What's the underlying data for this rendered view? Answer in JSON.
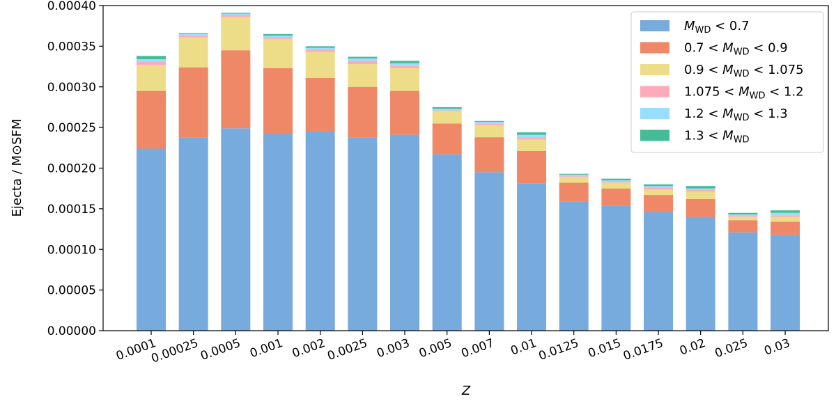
{
  "chart_data": {
    "type": "bar",
    "stacked": true,
    "title": "",
    "xlabel": "Z",
    "ylabel": "Ejecta / M⊙SFM",
    "ylim": [
      0,
      0.0004
    ],
    "yticks": [
      "0.00000",
      "0.00005",
      "0.00010",
      "0.00015",
      "0.00020",
      "0.00025",
      "0.00030",
      "0.00035",
      "0.00040"
    ],
    "categories": [
      "0.0001",
      "0.00025",
      "0.0005",
      "0.001",
      "0.002",
      "0.0025",
      "0.003",
      "0.005",
      "0.007",
      "0.01",
      "0.0125",
      "0.015",
      "0.0175",
      "0.02",
      "0.025",
      "0.03"
    ],
    "series": [
      {
        "name": "M_WD < 0.7",
        "color": "#77aadd",
        "values": [
          0.000224,
          0.000238,
          0.000249,
          0.000242,
          0.000245,
          0.000238,
          0.000241,
          0.000217,
          0.000195,
          0.000181,
          0.000159,
          0.000154,
          0.000146,
          0.00014,
          0.000121,
          0.000118
        ]
      },
      {
        "name": "0.7 < M_WD < 0.9",
        "color": "#ee8866",
        "values": [
          7.1e-05,
          8.6e-05,
          9.6e-05,
          8.1e-05,
          6.6e-05,
          6.2e-05,
          5.4e-05,
          3.8e-05,
          4.3e-05,
          4e-05,
          2.3e-05,
          2.1e-05,
          2.1e-05,
          2.2e-05,
          1.5e-05,
          1.6e-05
        ]
      },
      {
        "name": "0.9 < M_WD < 1.075",
        "color": "#eedd88",
        "values": [
          3.2e-05,
          3.7e-05,
          4.1e-05,
          3.6e-05,
          3.2e-05,
          2.8e-05,
          2.8e-05,
          1.5e-05,
          1.5e-05,
          1.4e-05,
          7e-06,
          7e-06,
          7e-06,
          9e-06,
          4e-06,
          6e-06
        ]
      },
      {
        "name": "1.075 < M_WD < 1.2",
        "color": "#ffaabb",
        "values": [
          4e-06,
          2e-06,
          2e-06,
          2e-06,
          3e-06,
          4e-06,
          3e-06,
          1e-06,
          2e-06,
          3e-06,
          1e-06,
          1e-06,
          2e-06,
          2e-06,
          1e-06,
          2e-06
        ]
      },
      {
        "name": "1.2 < M_WD < 1.3",
        "color": "#99ddff",
        "values": [
          3e-06,
          2e-06,
          2e-06,
          2e-06,
          2e-06,
          3e-06,
          3e-06,
          2e-06,
          2e-06,
          3e-06,
          2e-06,
          2e-06,
          2e-06,
          2e-06,
          2e-06,
          3e-06
        ]
      },
      {
        "name": "1.3 < M_WD",
        "color": "#44bb99",
        "values": [
          4e-06,
          1e-06,
          1e-06,
          2e-06,
          2e-06,
          2e-06,
          3e-06,
          2e-06,
          1e-06,
          3e-06,
          1e-06,
          2e-06,
          2e-06,
          3e-06,
          2e-06,
          3e-06
        ]
      }
    ],
    "legend": [
      {
        "pre": "",
        "sym": "M",
        "sub": "WD",
        "post": " < 0.7"
      },
      {
        "pre": "0.7 < ",
        "sym": "M",
        "sub": "WD",
        "post": " < 0.9"
      },
      {
        "pre": "0.9 < ",
        "sym": "M",
        "sub": "WD",
        "post": " < 1.075"
      },
      {
        "pre": "1.075 < ",
        "sym": "M",
        "sub": "WD",
        "post": " < 1.2"
      },
      {
        "pre": "1.2 < ",
        "sym": "M",
        "sub": "WD",
        "post": " < 1.3"
      },
      {
        "pre": "1.3 < ",
        "sym": "M",
        "sub": "WD",
        "post": ""
      }
    ],
    "legend_position": "top-right",
    "grid": false
  }
}
